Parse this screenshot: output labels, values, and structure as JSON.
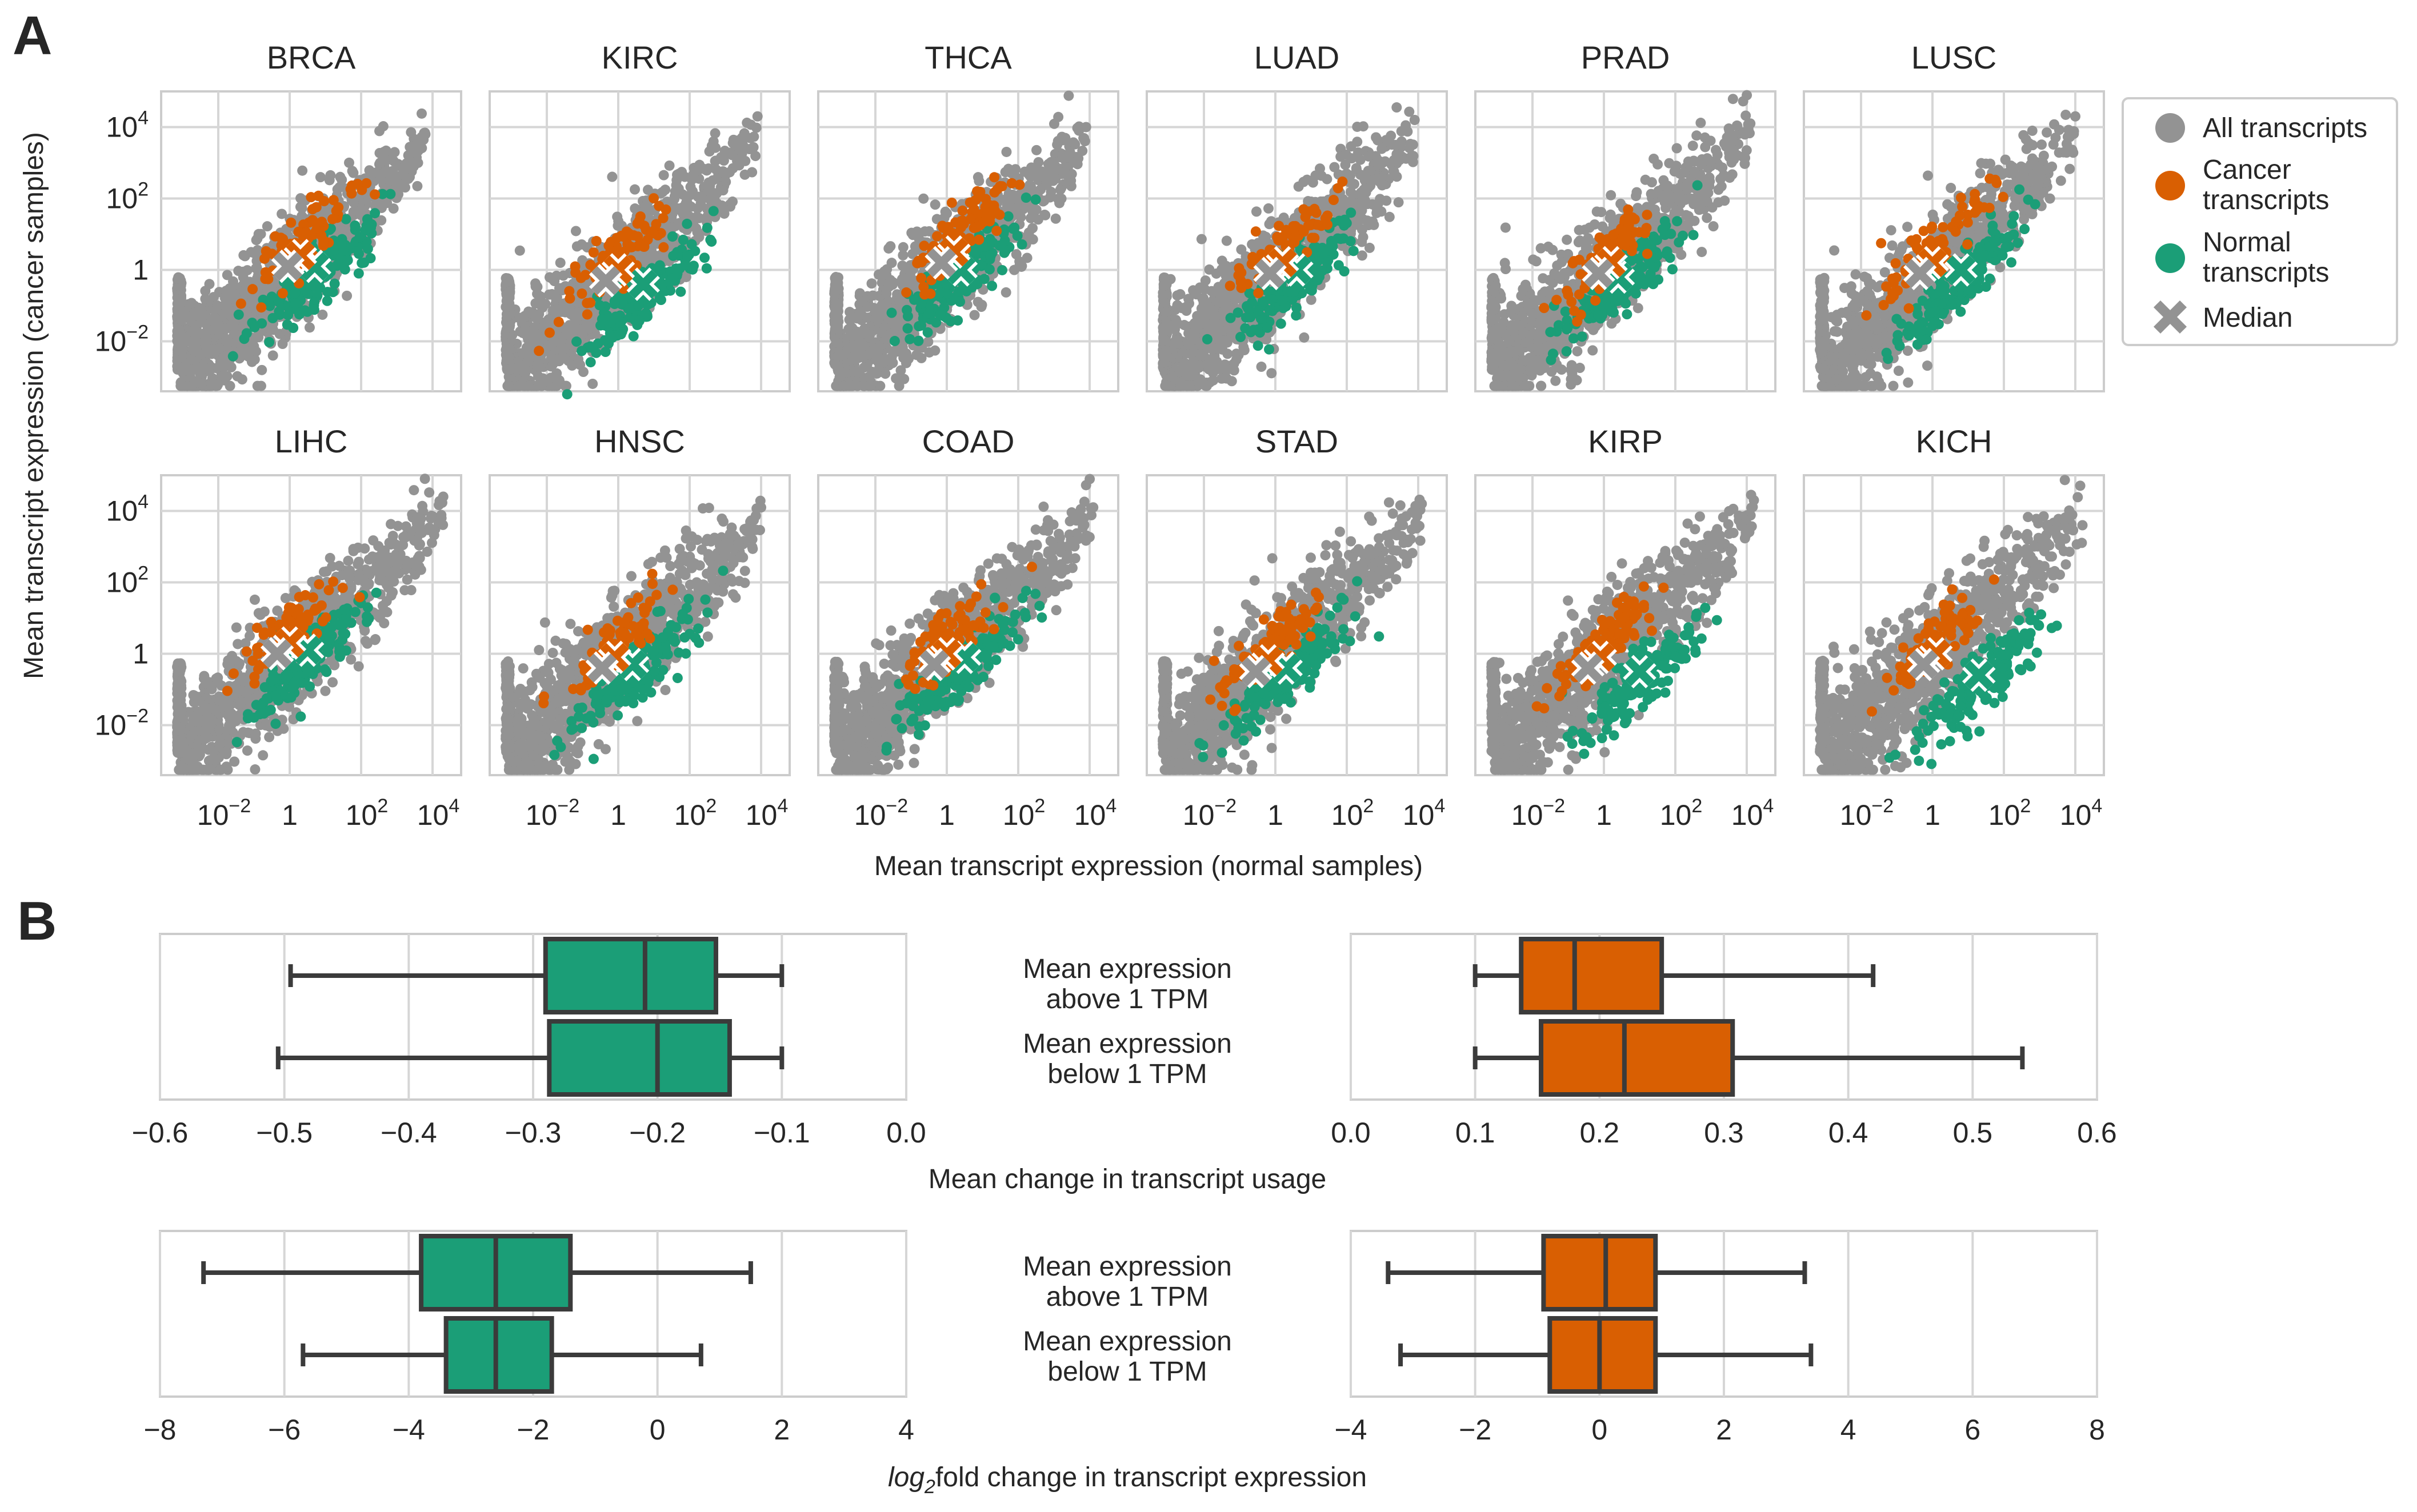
{
  "labels": {
    "panel_a": "A",
    "panel_b": "B",
    "a_xlabel": "Mean transcript expression (normal samples)",
    "a_ylabel": "Mean transcript expression (cancer samples)",
    "b1_xlabel": "Mean change in transcript usage",
    "b2_xlabel_sub": "2",
    "b2_xlabel_pre": "log",
    "b2_xlabel_post": "fold change in transcript expression",
    "cat_above_1": "Mean expression",
    "cat_above_2": "above 1 TPM",
    "cat_below_1": "Mean expression",
    "cat_below_2": "below 1 TPM"
  },
  "colors": {
    "all": "#939393",
    "cancer": "#d95f02",
    "normal": "#1b9e77",
    "median": "#939393",
    "grid": "#d6d6d6",
    "frame": "#cccccc",
    "box_edge": "#3b3b3b"
  },
  "legend": {
    "all": "All transcripts",
    "cancer_1": "Cancer",
    "cancer_2": "transcripts",
    "normal_1": "Normal",
    "normal_2": "transcripts",
    "median": "Median"
  },
  "chart_data": [
    {
      "type": "scatter",
      "panel": "A",
      "xscale": "log10",
      "yscale": "log10",
      "xlim_log10": [
        -3.6,
        4.8
      ],
      "ylim_log10": [
        -3.4,
        5.0
      ],
      "xticks": [
        "10^-2",
        "1",
        "10^2",
        "10^4"
      ],
      "yticks": [
        "10^4",
        "10^2",
        "1",
        "10^-2"
      ],
      "xlabel": "Mean transcript expression (normal samples)",
      "ylabel": "Mean transcript expression (cancer samples)",
      "series_names": [
        "All transcripts",
        "Cancer transcripts",
        "Normal transcripts",
        "Median"
      ],
      "subplots": [
        {
          "title": "BRCA",
          "median_cancer": [
            0.3,
            0.4
          ],
          "median_normal": [
            0.7,
            0.1
          ],
          "all_max": [
            3.8,
            3.8
          ]
        },
        {
          "title": "KIRC",
          "median_cancer": [
            0.0,
            0.0
          ],
          "median_normal": [
            0.7,
            -0.4
          ],
          "all_max": [
            3.9,
            4.3
          ]
        },
        {
          "title": "THCA",
          "median_cancer": [
            0.2,
            0.5
          ],
          "median_normal": [
            0.4,
            0.0
          ],
          "all_max": [
            3.9,
            4.0
          ]
        },
        {
          "title": "LUAD",
          "median_cancer": [
            0.2,
            0.2
          ],
          "median_normal": [
            0.6,
            0.0
          ],
          "all_max": [
            3.9,
            4.2
          ]
        },
        {
          "title": "PRAD",
          "median_cancer": [
            0.2,
            0.2
          ],
          "median_normal": [
            0.4,
            -0.2
          ],
          "all_max": [
            4.1,
            4.1
          ]
        },
        {
          "title": "LUSC",
          "median_cancer": [
            0.0,
            0.2
          ],
          "median_normal": [
            0.8,
            0.0
          ],
          "all_max": [
            4.0,
            4.3
          ]
        },
        {
          "title": "LIHC",
          "median_cancer": [
            0.0,
            0.3
          ],
          "median_normal": [
            0.5,
            0.1
          ],
          "all_max": [
            4.3,
            4.4
          ]
        },
        {
          "title": "HNSC",
          "median_cancer": [
            -0.1,
            -0.1
          ],
          "median_normal": [
            0.4,
            -0.3
          ],
          "all_max": [
            4.0,
            4.1
          ]
        },
        {
          "title": "COAD",
          "median_cancer": [
            0.0,
            0.0
          ],
          "median_normal": [
            0.5,
            -0.1
          ],
          "all_max": [
            4.1,
            4.1
          ]
        },
        {
          "title": "STAD",
          "median_cancer": [
            -0.2,
            -0.2
          ],
          "median_normal": [
            0.3,
            -0.4
          ],
          "all_max": [
            4.1,
            4.2
          ]
        },
        {
          "title": "KIRP",
          "median_cancer": [
            -0.1,
            -0.1
          ],
          "median_normal": [
            1.0,
            -0.5
          ],
          "all_max": [
            4.2,
            4.3
          ]
        },
        {
          "title": "KICH",
          "median_cancer": [
            0.1,
            0.0
          ],
          "median_normal": [
            1.3,
            -0.6
          ],
          "all_max": [
            4.2,
            3.6
          ]
        }
      ]
    },
    {
      "type": "box",
      "panel": "B",
      "xlabel": "Mean change in transcript usage",
      "categories": [
        "Mean expression above 1 TPM",
        "Mean expression below 1 TPM"
      ],
      "left": {
        "color": "normal",
        "xlim": [
          -0.6,
          0.0
        ],
        "xticks": [
          -0.6,
          -0.5,
          -0.4,
          -0.3,
          -0.2,
          -0.1,
          0.0
        ],
        "boxes": [
          {
            "whislo": -0.495,
            "q1": -0.29,
            "med": -0.21,
            "q3": -0.153,
            "whishi": -0.1
          },
          {
            "whislo": -0.505,
            "q1": -0.287,
            "med": -0.2,
            "q3": -0.142,
            "whishi": -0.1
          }
        ]
      },
      "right": {
        "color": "cancer",
        "xlim": [
          0.0,
          0.6
        ],
        "xticks": [
          0.0,
          0.1,
          0.2,
          0.3,
          0.4,
          0.5,
          0.6
        ],
        "boxes": [
          {
            "whislo": 0.1,
            "q1": 0.137,
            "med": 0.18,
            "q3": 0.25,
            "whishi": 0.42
          },
          {
            "whislo": 0.1,
            "q1": 0.153,
            "med": 0.22,
            "q3": 0.307,
            "whishi": 0.54
          }
        ]
      }
    },
    {
      "type": "box",
      "panel": "B",
      "xlabel": "log2fold change in transcript expression",
      "categories": [
        "Mean expression above 1 TPM",
        "Mean expression below 1 TPM"
      ],
      "left": {
        "color": "normal",
        "xlim": [
          -8,
          4
        ],
        "xticks": [
          -8,
          -6,
          -4,
          -2,
          0,
          2,
          4
        ],
        "boxes": [
          {
            "whislo": -7.3,
            "q1": -3.8,
            "med": -2.6,
            "q3": -1.4,
            "whishi": 1.5
          },
          {
            "whislo": -5.7,
            "q1": -3.4,
            "med": -2.6,
            "q3": -1.7,
            "whishi": 0.7
          }
        ]
      },
      "right": {
        "color": "cancer",
        "xlim": [
          -4,
          8
        ],
        "xticks": [
          -4,
          -2,
          0,
          2,
          4,
          6,
          8
        ],
        "boxes": [
          {
            "whislo": -3.4,
            "q1": -0.9,
            "med": 0.1,
            "q3": 0.9,
            "whishi": 3.3
          },
          {
            "whislo": -3.2,
            "q1": -0.8,
            "med": 0.0,
            "q3": 0.9,
            "whishi": 3.4
          }
        ]
      }
    }
  ]
}
